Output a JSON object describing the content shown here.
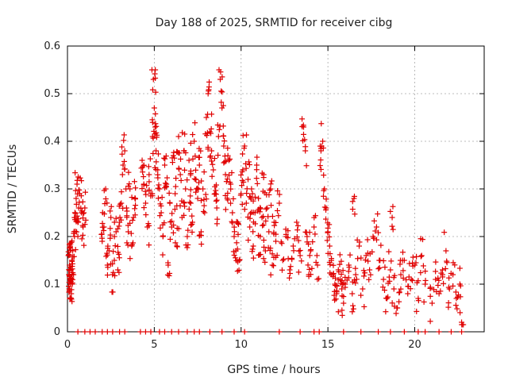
{
  "chart_data": {
    "type": "scatter",
    "title": "Day 188 of 2025, SRMTID for receiver cibg",
    "xlabel": "GPS time / hours",
    "ylabel": "SRMTID / TECUs",
    "xlim": [
      0,
      24
    ],
    "ylim": [
      0,
      0.6
    ],
    "xticks": [
      0,
      5,
      10,
      15,
      20
    ],
    "yticks": [
      0,
      0.1,
      0.2,
      0.3,
      0.4,
      0.5,
      0.6
    ],
    "xtick_labels": [
      "0",
      "5",
      "10",
      "15",
      "20"
    ],
    "ytick_labels": [
      "0",
      "0.1",
      "0.2",
      "0.3",
      "0.4",
      "0.5",
      "0.6"
    ],
    "grid": true,
    "marker": "+",
    "color": "#e00000",
    "series": [
      {
        "name": "SRMTID",
        "points": [
          [
            0.05,
            0.16
          ],
          [
            0.08,
            0.12
          ],
          [
            0.1,
            0.09
          ],
          [
            0.12,
            0.14
          ],
          [
            0.15,
            0.18
          ],
          [
            0.18,
            0.11
          ],
          [
            0.2,
            0.13
          ],
          [
            0.22,
            0.08
          ],
          [
            0.25,
            0.15
          ],
          [
            0.28,
            0.1
          ],
          [
            0.3,
            0.17
          ],
          [
            0.35,
            0.12
          ],
          [
            0.4,
            0.2
          ],
          [
            0.45,
            0.24
          ],
          [
            0.5,
            0.28
          ],
          [
            0.55,
            0.31
          ],
          [
            0.6,
            0.23
          ],
          [
            0.65,
            0.26
          ],
          [
            0.7,
            0.29
          ],
          [
            0.8,
            0.25
          ],
          [
            0.9,
            0.22
          ],
          [
            1.0,
            0.26
          ],
          [
            2.0,
            0.19
          ],
          [
            2.1,
            0.22
          ],
          [
            2.2,
            0.3
          ],
          [
            2.3,
            0.14
          ],
          [
            2.4,
            0.17
          ],
          [
            2.5,
            0.24
          ],
          [
            2.6,
            0.12
          ],
          [
            2.7,
            0.15
          ],
          [
            2.8,
            0.21
          ],
          [
            2.9,
            0.13
          ],
          [
            3.0,
            0.23
          ],
          [
            3.1,
            0.27
          ],
          [
            3.2,
            0.35
          ],
          [
            3.3,
            0.38
          ],
          [
            3.4,
            0.26
          ],
          [
            3.5,
            0.21
          ],
          [
            3.6,
            0.3
          ],
          [
            3.7,
            0.18
          ],
          [
            3.8,
            0.24
          ],
          [
            3.9,
            0.28
          ],
          [
            4.3,
            0.36
          ],
          [
            4.4,
            0.31
          ],
          [
            4.5,
            0.27
          ],
          [
            4.6,
            0.22
          ],
          [
            4.7,
            0.33
          ],
          [
            4.8,
            0.29
          ],
          [
            4.9,
            0.41
          ],
          [
            4.95,
            0.53
          ],
          [
            5.0,
            0.47
          ],
          [
            5.05,
            0.43
          ],
          [
            5.1,
            0.38
          ],
          [
            5.2,
            0.34
          ],
          [
            5.3,
            0.3
          ],
          [
            5.4,
            0.25
          ],
          [
            5.5,
            0.2
          ],
          [
            5.6,
            0.35
          ],
          [
            5.7,
            0.31
          ],
          [
            5.8,
            0.14
          ],
          [
            5.9,
            0.27
          ],
          [
            6.0,
            0.22
          ],
          [
            6.1,
            0.37
          ],
          [
            6.2,
            0.29
          ],
          [
            6.3,
            0.18
          ],
          [
            6.4,
            0.41
          ],
          [
            6.5,
            0.33
          ],
          [
            6.6,
            0.24
          ],
          [
            6.7,
            0.38
          ],
          [
            6.8,
            0.3
          ],
          [
            6.9,
            0.2
          ],
          [
            7.0,
            0.36
          ],
          [
            7.1,
            0.27
          ],
          [
            7.2,
            0.23
          ],
          [
            7.3,
            0.4
          ],
          [
            7.4,
            0.32
          ],
          [
            7.5,
            0.28
          ],
          [
            7.6,
            0.35
          ],
          [
            7.7,
            0.21
          ],
          [
            7.8,
            0.3
          ],
          [
            7.9,
            0.25
          ],
          [
            8.0,
            0.45
          ],
          [
            8.1,
            0.5
          ],
          [
            8.2,
            0.42
          ],
          [
            8.3,
            0.38
          ],
          [
            8.4,
            0.34
          ],
          [
            8.5,
            0.29
          ],
          [
            8.6,
            0.26
          ],
          [
            8.7,
            0.41
          ],
          [
            8.8,
            0.53
          ],
          [
            8.9,
            0.47
          ],
          [
            9.0,
            0.39
          ],
          [
            9.1,
            0.33
          ],
          [
            9.2,
            0.28
          ],
          [
            9.3,
            0.36
          ],
          [
            9.4,
            0.31
          ],
          [
            9.5,
            0.25
          ],
          [
            9.6,
            0.2
          ],
          [
            9.7,
            0.17
          ],
          [
            9.8,
            0.23
          ],
          [
            9.9,
            0.15
          ],
          [
            10.0,
            0.29
          ],
          [
            10.1,
            0.34
          ],
          [
            10.2,
            0.39
          ],
          [
            10.3,
            0.27
          ],
          [
            10.4,
            0.32
          ],
          [
            10.5,
            0.22
          ],
          [
            10.6,
            0.3
          ],
          [
            10.7,
            0.18
          ],
          [
            10.8,
            0.25
          ],
          [
            10.9,
            0.35
          ],
          [
            11.0,
            0.28
          ],
          [
            11.1,
            0.2
          ],
          [
            11.2,
            0.24
          ],
          [
            11.3,
            0.33
          ],
          [
            11.4,
            0.17
          ],
          [
            11.5,
            0.26
          ],
          [
            11.6,
            0.21
          ],
          [
            11.7,
            0.3
          ],
          [
            11.8,
            0.14
          ],
          [
            11.9,
            0.23
          ],
          [
            12.0,
            0.19
          ],
          [
            12.2,
            0.27
          ],
          [
            12.4,
            0.15
          ],
          [
            12.6,
            0.2
          ],
          [
            12.8,
            0.13
          ],
          [
            13.0,
            0.18
          ],
          [
            13.2,
            0.23
          ],
          [
            13.4,
            0.16
          ],
          [
            13.6,
            0.43
          ],
          [
            13.7,
            0.38
          ],
          [
            13.8,
            0.2
          ],
          [
            13.9,
            0.12
          ],
          [
            14.0,
            0.17
          ],
          [
            14.2,
            0.22
          ],
          [
            14.4,
            0.14
          ],
          [
            14.6,
            0.38
          ],
          [
            14.7,
            0.4
          ],
          [
            14.8,
            0.3
          ],
          [
            14.9,
            0.26
          ],
          [
            15.0,
            0.21
          ],
          [
            15.1,
            0.18
          ],
          [
            15.2,
            0.15
          ],
          [
            15.3,
            0.12
          ],
          [
            15.4,
            0.1
          ],
          [
            15.5,
            0.08
          ],
          [
            15.6,
            0.13
          ],
          [
            15.7,
            0.11
          ],
          [
            15.8,
            0.09
          ],
          [
            15.9,
            0.06
          ],
          [
            16.0,
            0.1
          ],
          [
            16.2,
            0.14
          ],
          [
            16.4,
            0.08
          ],
          [
            16.5,
            0.28
          ],
          [
            16.6,
            0.12
          ],
          [
            16.8,
            0.18
          ],
          [
            17.0,
            0.09
          ],
          [
            17.2,
            0.16
          ],
          [
            17.4,
            0.13
          ],
          [
            17.6,
            0.2
          ],
          [
            17.8,
            0.22
          ],
          [
            18.0,
            0.15
          ],
          [
            18.2,
            0.11
          ],
          [
            18.4,
            0.07
          ],
          [
            18.6,
            0.13
          ],
          [
            18.7,
            0.24
          ],
          [
            18.8,
            0.09
          ],
          [
            19.0,
            0.05
          ],
          [
            19.2,
            0.12
          ],
          [
            19.4,
            0.15
          ],
          [
            19.6,
            0.08
          ],
          [
            19.8,
            0.11
          ],
          [
            20.0,
            0.14
          ],
          [
            20.2,
            0.07
          ],
          [
            20.4,
            0.16
          ],
          [
            20.6,
            0.1
          ],
          [
            21.0,
            0.06
          ],
          [
            21.2,
            0.11
          ],
          [
            21.4,
            0.08
          ],
          [
            21.6,
            0.13
          ],
          [
            21.8,
            0.17
          ],
          [
            22.0,
            0.09
          ],
          [
            22.2,
            0.12
          ],
          [
            22.4,
            0.07
          ],
          [
            22.6,
            0.1
          ],
          [
            22.7,
            0.02
          ]
        ]
      }
    ],
    "zero_points_x": [
      0.6,
      1.0,
      1.3,
      1.6,
      2.0,
      2.3,
      2.6,
      3.0,
      3.3,
      4.2,
      4.5,
      4.8,
      5.3,
      5.6,
      6.0,
      6.4,
      6.9,
      7.3,
      7.6,
      8.2,
      8.9,
      9.6,
      10.2,
      12.2,
      13.4,
      14.2,
      14.5,
      15.9,
      16.9,
      17.9,
      18.6,
      19.4,
      20.2,
      20.6,
      21.4,
      22.1,
      22.7
    ]
  }
}
